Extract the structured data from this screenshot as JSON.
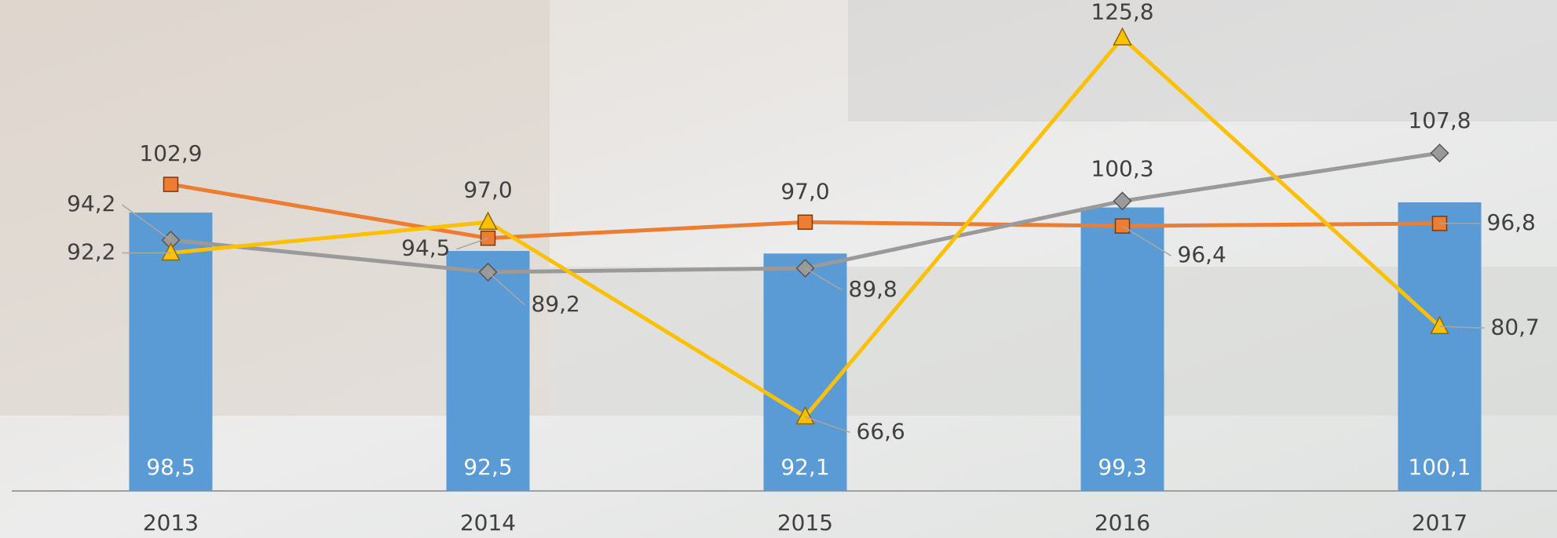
{
  "chart_data": {
    "type": "bar",
    "categories": [
      "2013",
      "2014",
      "2015",
      "2016",
      "2017"
    ],
    "ylim": [
      55,
      130
    ],
    "series": [
      {
        "type": "bar",
        "color": "#5b9bd5",
        "values": [
          98.5,
          92.5,
          92.1,
          99.3,
          100.1
        ],
        "value_labels": [
          "98,5",
          "92,5",
          "92,1",
          "99,3",
          "100,1"
        ]
      },
      {
        "type": "line",
        "marker": "square",
        "color": "#ed7d31",
        "values": [
          102.9,
          94.5,
          97.0,
          96.4,
          96.8
        ],
        "value_labels": [
          "102,9",
          "94,5",
          "97,0",
          "96,4",
          "96,8"
        ]
      },
      {
        "type": "line",
        "marker": "diamond",
        "color": "#9a9a9a",
        "values": [
          94.2,
          89.2,
          89.8,
          100.3,
          107.8
        ],
        "value_labels": [
          "94,2",
          "89,2",
          "89,8",
          "100,3",
          "107,8"
        ]
      },
      {
        "type": "line",
        "marker": "triangle",
        "color": "#ffc000",
        "values": [
          92.2,
          97.0,
          66.6,
          125.8,
          80.7
        ],
        "value_labels": [
          "92,2",
          "97,0",
          "66,6",
          "125,8",
          "80,7"
        ]
      }
    ]
  }
}
